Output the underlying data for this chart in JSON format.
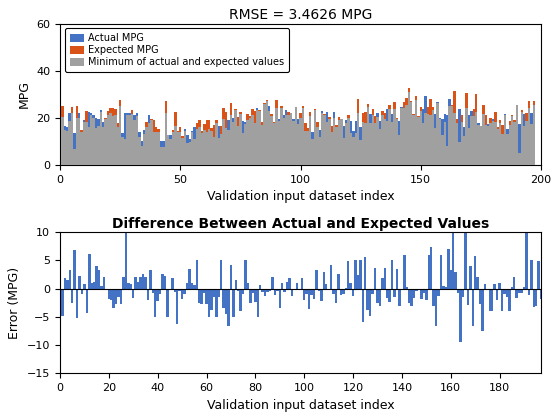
{
  "n": 197,
  "title1": "RMSE = 3.4626 MPG",
  "title2": "Difference Between Actual and Expected Values",
  "xlabel": "Validation input dataset index",
  "ylabel1": "MPG",
  "ylabel2": "Error (MPG)",
  "legend_labels": [
    "Actual MPG",
    "Expected MPG",
    "Minimum of actual and expected values"
  ],
  "color_actual": "#4472C4",
  "color_expected": "#D95319",
  "color_min": "#A0A0A0",
  "color_diff": "#4472C4",
  "ylim1": [
    0,
    60
  ],
  "ylim2": [
    -15,
    10
  ],
  "xlim1": [
    0,
    200
  ],
  "xlim2": [
    0,
    197
  ],
  "yticks1": [
    0,
    20,
    40,
    60
  ],
  "xticks1": [
    0,
    50,
    100,
    150,
    200
  ],
  "yticks2": [
    -15,
    -10,
    -5,
    0,
    5,
    10
  ],
  "xticks2": [
    0,
    20,
    40,
    60,
    80,
    100,
    120,
    140,
    160,
    180
  ],
  "bar_width": 1.0,
  "background_color": "#FFFFFF",
  "title1_fontsize": 10,
  "title2_fontsize": 10,
  "title2_bold": true,
  "axis_fontsize": 9,
  "tick_fontsize": 8,
  "legend_fontsize": 7
}
